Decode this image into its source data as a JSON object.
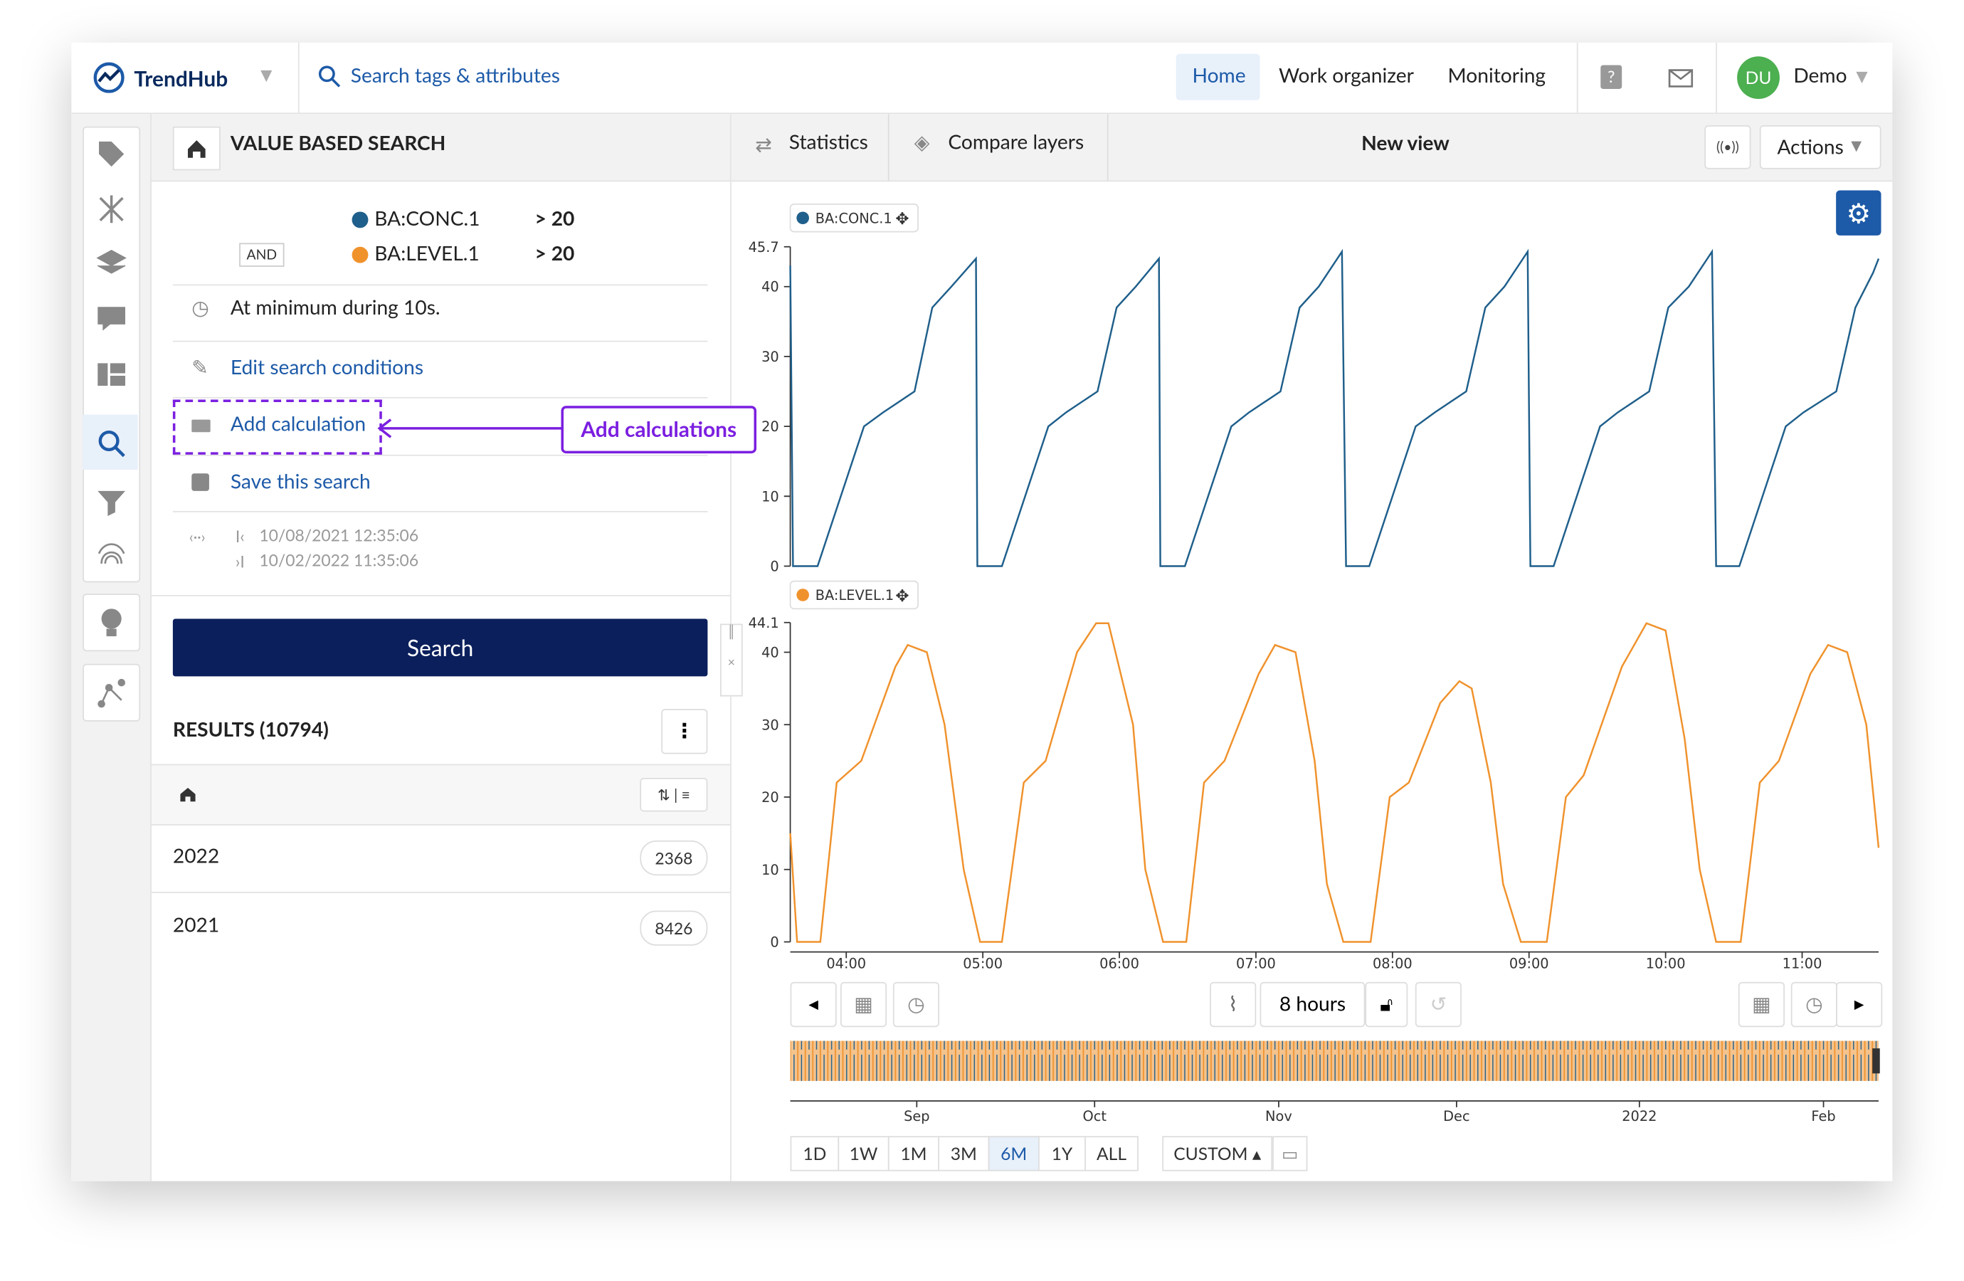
{
  "header": {
    "logo": "TrendHub",
    "search": "Search tags & attributes",
    "nav": [
      "Home",
      "Work organizer",
      "Monitoring"
    ],
    "user_initials": "DU",
    "user_name": "Demo"
  },
  "panel": {
    "title": "VALUE BASED SEARCH",
    "conditions": [
      {
        "tag": "BA:CONC.1",
        "op": "> 20"
      },
      {
        "tag": "BA:LEVEL.1",
        "op": "> 20"
      }
    ],
    "and_label": "AND",
    "duration": "At minimum during 10s.",
    "actions": [
      "Edit search conditions",
      "Add calculation",
      "Save this search"
    ],
    "annotation": "Add calculations",
    "dates": [
      "10/08/2021 12:35:06",
      "10/02/2022 11:35:06"
    ],
    "search_button": "Search",
    "results_title": "RESULTS (10794)",
    "rows": [
      [
        "2022",
        "2368"
      ],
      [
        "2021",
        "8426"
      ]
    ]
  },
  "toolbar": {
    "tabs": [
      "Statistics",
      "Compare layers"
    ],
    "view_title": "New view",
    "actions": "Actions",
    "period": "8 hours",
    "ranges": [
      "1D",
      "1W",
      "1M",
      "3M",
      "6M",
      "1Y",
      "ALL"
    ],
    "custom": "CUSTOM"
  },
  "navigator": {
    "labels": [
      "Sep",
      "Oct",
      "Nov",
      "Dec",
      "2022",
      "Feb"
    ]
  },
  "chart_data": [
    {
      "type": "line",
      "xlim": [
        3.59,
        11.56
      ],
      "ylim": [
        0,
        45.7
      ],
      "yticks": [
        0,
        10,
        20,
        30,
        40,
        45.7
      ],
      "series": [
        {
          "name": "BA:CONC.1",
          "color": "#1f5f8b",
          "x": [
            3.59,
            3.61,
            3.79,
            4.13,
            4.27,
            4.5,
            4.63,
            4.77,
            4.95,
            4.96,
            5.14,
            5.48,
            5.61,
            5.84,
            5.98,
            6.12,
            6.29,
            6.3,
            6.48,
            6.82,
            6.95,
            7.18,
            7.32,
            7.46,
            7.63,
            7.66,
            7.83,
            8.17,
            8.31,
            8.54,
            8.68,
            8.82,
            8.99,
            9.01,
            9.18,
            9.52,
            9.65,
            9.88,
            10.02,
            10.17,
            10.34,
            10.37,
            10.54,
            10.88,
            11.01,
            11.25,
            11.39,
            11.52,
            11.56
          ],
          "values": [
            43,
            0,
            0,
            20,
            22,
            25,
            37,
            40,
            44,
            0,
            0,
            20,
            22,
            25,
            37,
            40,
            44,
            0,
            0,
            20,
            22,
            25,
            37,
            40,
            45,
            0,
            0,
            20,
            22,
            25,
            37,
            40,
            45,
            0,
            0,
            20,
            22,
            25,
            37,
            40,
            45,
            0,
            0,
            20,
            22,
            25,
            37,
            42,
            44
          ]
        }
      ]
    },
    {
      "type": "line",
      "xlim": [
        3.59,
        11.56
      ],
      "ylim": [
        0,
        44.1
      ],
      "yticks": [
        0,
        10,
        20,
        30,
        40,
        44.1
      ],
      "xticks": [
        {
          "value": 4,
          "label": "04:00"
        },
        {
          "value": 5,
          "label": "05:00"
        },
        {
          "value": 6,
          "label": "06:00"
        },
        {
          "value": 7,
          "label": "07:00"
        },
        {
          "value": 8,
          "label": "08:00"
        },
        {
          "value": 9,
          "label": "09:00"
        },
        {
          "value": 10,
          "label": "10:00"
        },
        {
          "value": 11,
          "label": "11:00"
        }
      ],
      "series": [
        {
          "name": "BA:LEVEL.1",
          "color": "#f0922c",
          "x": [
            3.59,
            3.64,
            3.81,
            3.93,
            4.11,
            4.36,
            4.45,
            4.59,
            4.72,
            4.86,
            4.98,
            5.14,
            5.3,
            5.46,
            5.69,
            5.83,
            5.92,
            6.1,
            6.19,
            6.32,
            6.49,
            6.62,
            6.77,
            7.02,
            7.14,
            7.29,
            7.43,
            7.52,
            7.64,
            7.84,
            7.98,
            8.12,
            8.35,
            8.49,
            8.58,
            8.72,
            8.81,
            8.94,
            9.13,
            9.27,
            9.4,
            9.68,
            9.86,
            10.0,
            10.14,
            10.25,
            10.37,
            10.55,
            10.69,
            10.83,
            11.06,
            11.19,
            11.33,
            11.47,
            11.56
          ],
          "values": [
            15,
            0,
            0,
            22,
            25,
            38,
            41,
            40,
            30,
            10,
            0,
            0,
            22,
            25,
            40,
            44,
            44,
            30,
            10,
            0,
            0,
            22,
            25,
            37,
            41,
            40,
            25,
            8,
            0,
            0,
            20,
            22,
            33,
            36,
            35,
            22,
            8,
            0,
            0,
            20,
            23,
            38,
            44,
            43,
            28,
            10,
            0,
            0,
            22,
            25,
            37,
            41,
            40,
            30,
            13
          ]
        }
      ]
    }
  ]
}
